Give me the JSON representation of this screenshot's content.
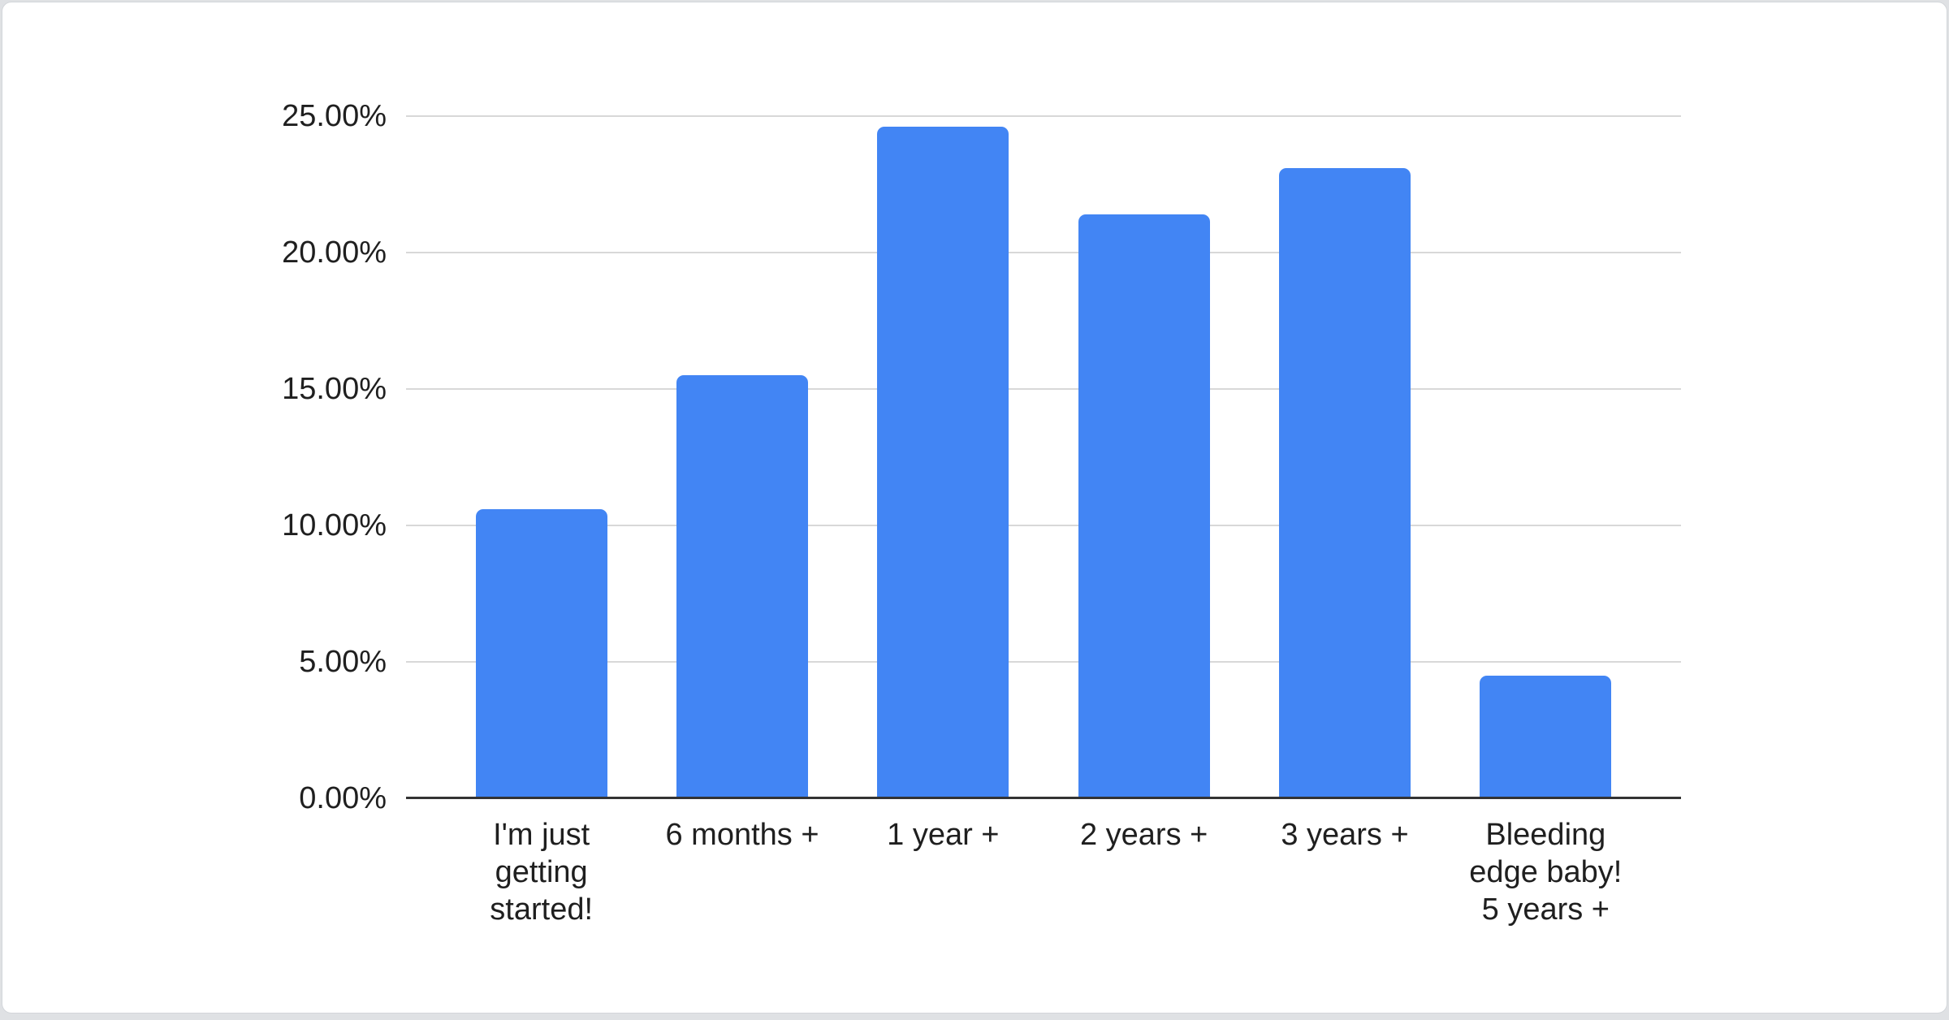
{
  "page": {
    "background_color": "#dfe1e4",
    "card_background_color": "#ffffff",
    "card_border_color": "#d3d6da"
  },
  "chart_data": {
    "type": "bar",
    "title": "",
    "xlabel": "",
    "ylabel": "",
    "categories": [
      "I'm just getting started!",
      "6 months +",
      "1 year +",
      "2 years +",
      "3 years +",
      "Bleeding edge baby! 5 years +"
    ],
    "categories_display": [
      "I'm just\ngetting\nstarted!",
      "6 months +",
      "1 year +",
      "2 years +",
      "3 years +",
      "Bleeding\nedge baby!\n5 years +"
    ],
    "values": [
      10.6,
      15.5,
      24.6,
      21.4,
      23.1,
      4.5
    ],
    "value_unit": "%",
    "ylim": [
      0,
      25
    ],
    "yticks": [
      {
        "value": 0,
        "label": "0.00%"
      },
      {
        "value": 5,
        "label": "5.00%"
      },
      {
        "value": 10,
        "label": "10.00%"
      },
      {
        "value": 15,
        "label": "15.00%"
      },
      {
        "value": 20,
        "label": "20.00%"
      },
      {
        "value": 25,
        "label": "25.00%"
      }
    ],
    "grid": true,
    "legend_position": "none",
    "bar_color": "#4285F4",
    "gridline_color": "#d8d8d8",
    "baseline_color": "#333333",
    "text_color": "#1f1f1f"
  }
}
